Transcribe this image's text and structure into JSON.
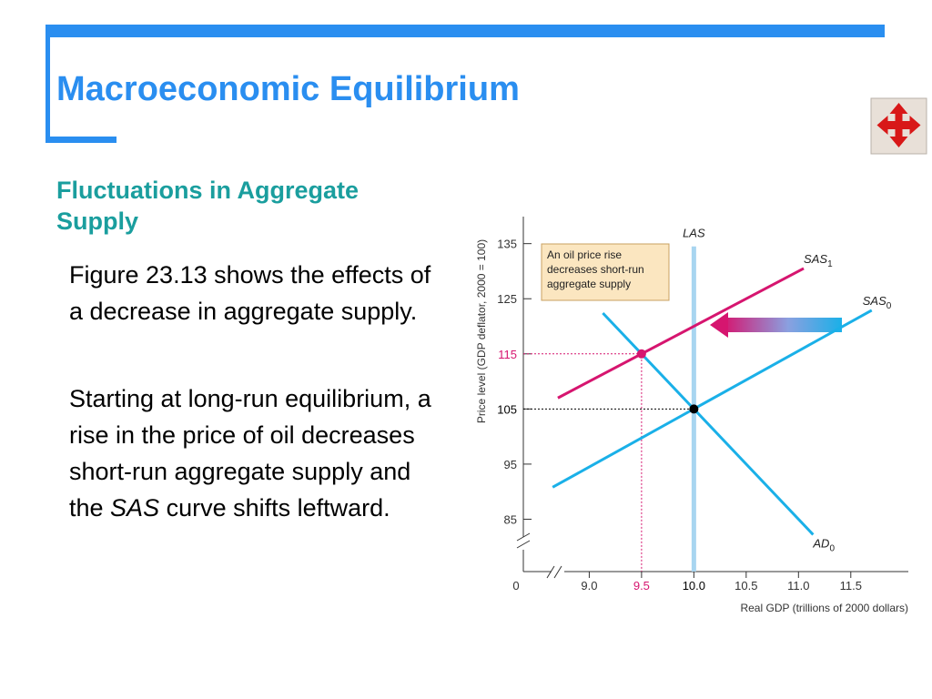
{
  "slide": {
    "title": "Macroeconomic Equilibrium",
    "subtitle": "Fluctuations in Aggregate Supply",
    "paragraphs": [
      [
        "Figure 23.13 shows the effects of a decrease in aggregate supply."
      ],
      [
        "Starting at long-run equilibrium, a rise in the price of oil decreases short-run aggregate supply and the ",
        "SAS",
        " curve shifts leftward."
      ]
    ]
  },
  "chart_data": {
    "type": "line",
    "x_label": "Real GDP (trillions of 2000 dollars)",
    "y_label": "Price level (GDP deflator, 2000 = 100)",
    "x_origin_label": "0",
    "annotation": [
      "An oil price rise",
      "decreases short-run",
      "aggregate supply"
    ],
    "xlim": [
      8.37,
      12.05
    ],
    "ylim": [
      75.5,
      139.9
    ],
    "xticks": [
      {
        "value": 9,
        "label": "9.0"
      },
      9.5,
      {
        "value": 10,
        "label": "10.0"
      },
      10.5,
      {
        "value": 11,
        "label": "11.0"
      },
      11.5
    ],
    "yticks": [
      85,
      95,
      105,
      115,
      125,
      135
    ],
    "series": [
      {
        "name": "LAS",
        "color": "#a8d5f0",
        "x": [
          10,
          10
        ],
        "y": [
          134.5,
          75.5
        ]
      },
      {
        "name": "SAS",
        "sub": "1",
        "color": "#d6156f",
        "x": [
          8.7,
          11.05
        ],
        "y": [
          107,
          130.5
        ]
      },
      {
        "name": "SAS",
        "sub": "0",
        "color": "#1ab0e8",
        "x": [
          8.65,
          11.7
        ],
        "y": [
          90.8,
          122.9
        ]
      },
      {
        "name": "AD",
        "sub": "0",
        "color": "#1ab0e8",
        "x": [
          9.13,
          11.14
        ],
        "y": [
          122.4,
          82.2
        ]
      }
    ],
    "points": [
      {
        "x": 9.5,
        "y": 115,
        "color": "#d6156f"
      },
      {
        "x": 10,
        "y": 105,
        "color": "#000000"
      }
    ]
  }
}
